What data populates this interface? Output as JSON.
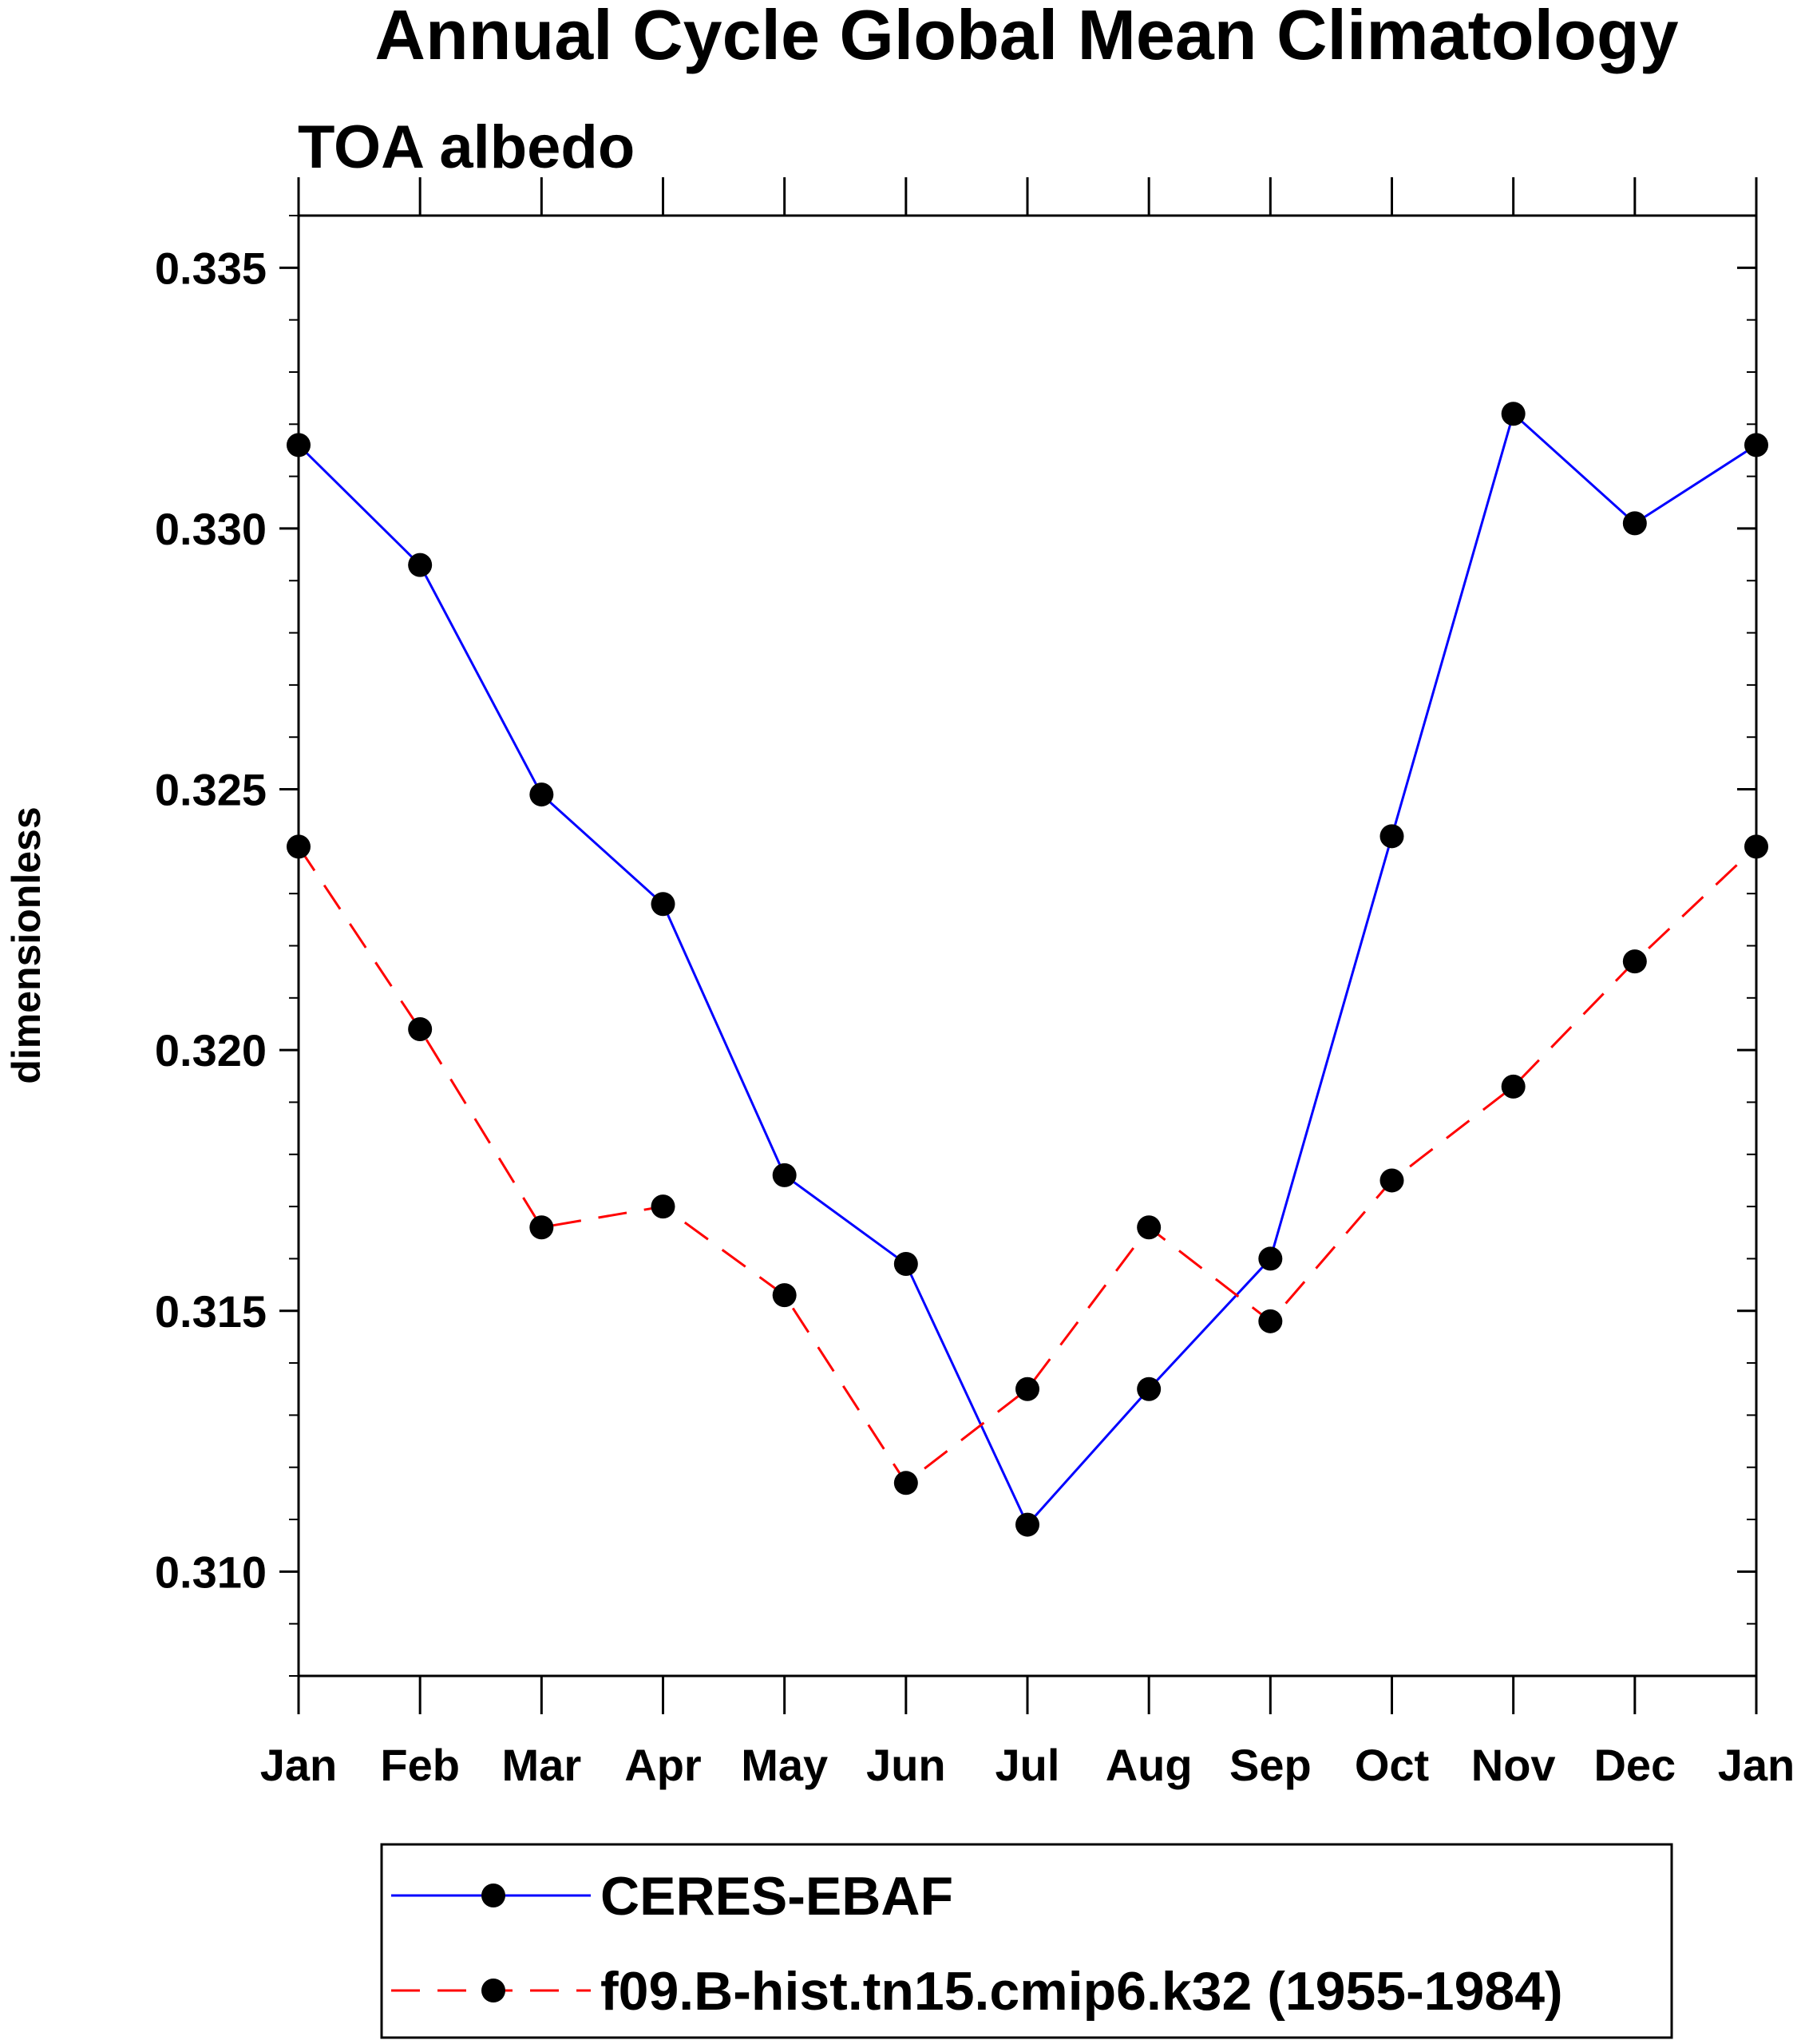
{
  "chart_data": {
    "type": "line",
    "title": "Annual Cycle Global Mean Climatology",
    "subtitle": "TOA albedo",
    "xlabel": "",
    "ylabel": "dimensionless",
    "categories": [
      "Jan",
      "Feb",
      "Mar",
      "Apr",
      "May",
      "Jun",
      "Jul",
      "Aug",
      "Sep",
      "Oct",
      "Nov",
      "Dec",
      "Jan"
    ],
    "ylim": [
      0.308,
      0.336
    ],
    "yticks": [
      "0.310",
      "0.315",
      "0.320",
      "0.325",
      "0.330",
      "0.335"
    ],
    "grid": false,
    "legend_position": "bottom",
    "series": [
      {
        "name": "CERES-EBAF",
        "color": "#0000ff",
        "dash": "solid",
        "values": [
          0.3316,
          0.3293,
          0.3249,
          0.3228,
          0.3176,
          0.3159,
          0.3109,
          0.3135,
          0.316,
          0.3241,
          0.3322,
          0.3301,
          0.3316
        ]
      },
      {
        "name": "f09.B-hist.tn15.cmip6.k32 (1955-1984)",
        "color": "#ff0000",
        "dash": "dashed",
        "values": [
          0.3239,
          0.3204,
          0.3166,
          0.317,
          0.3153,
          0.3117,
          0.3135,
          0.3166,
          0.3148,
          0.3175,
          0.3193,
          0.3217,
          0.3239
        ]
      }
    ]
  }
}
